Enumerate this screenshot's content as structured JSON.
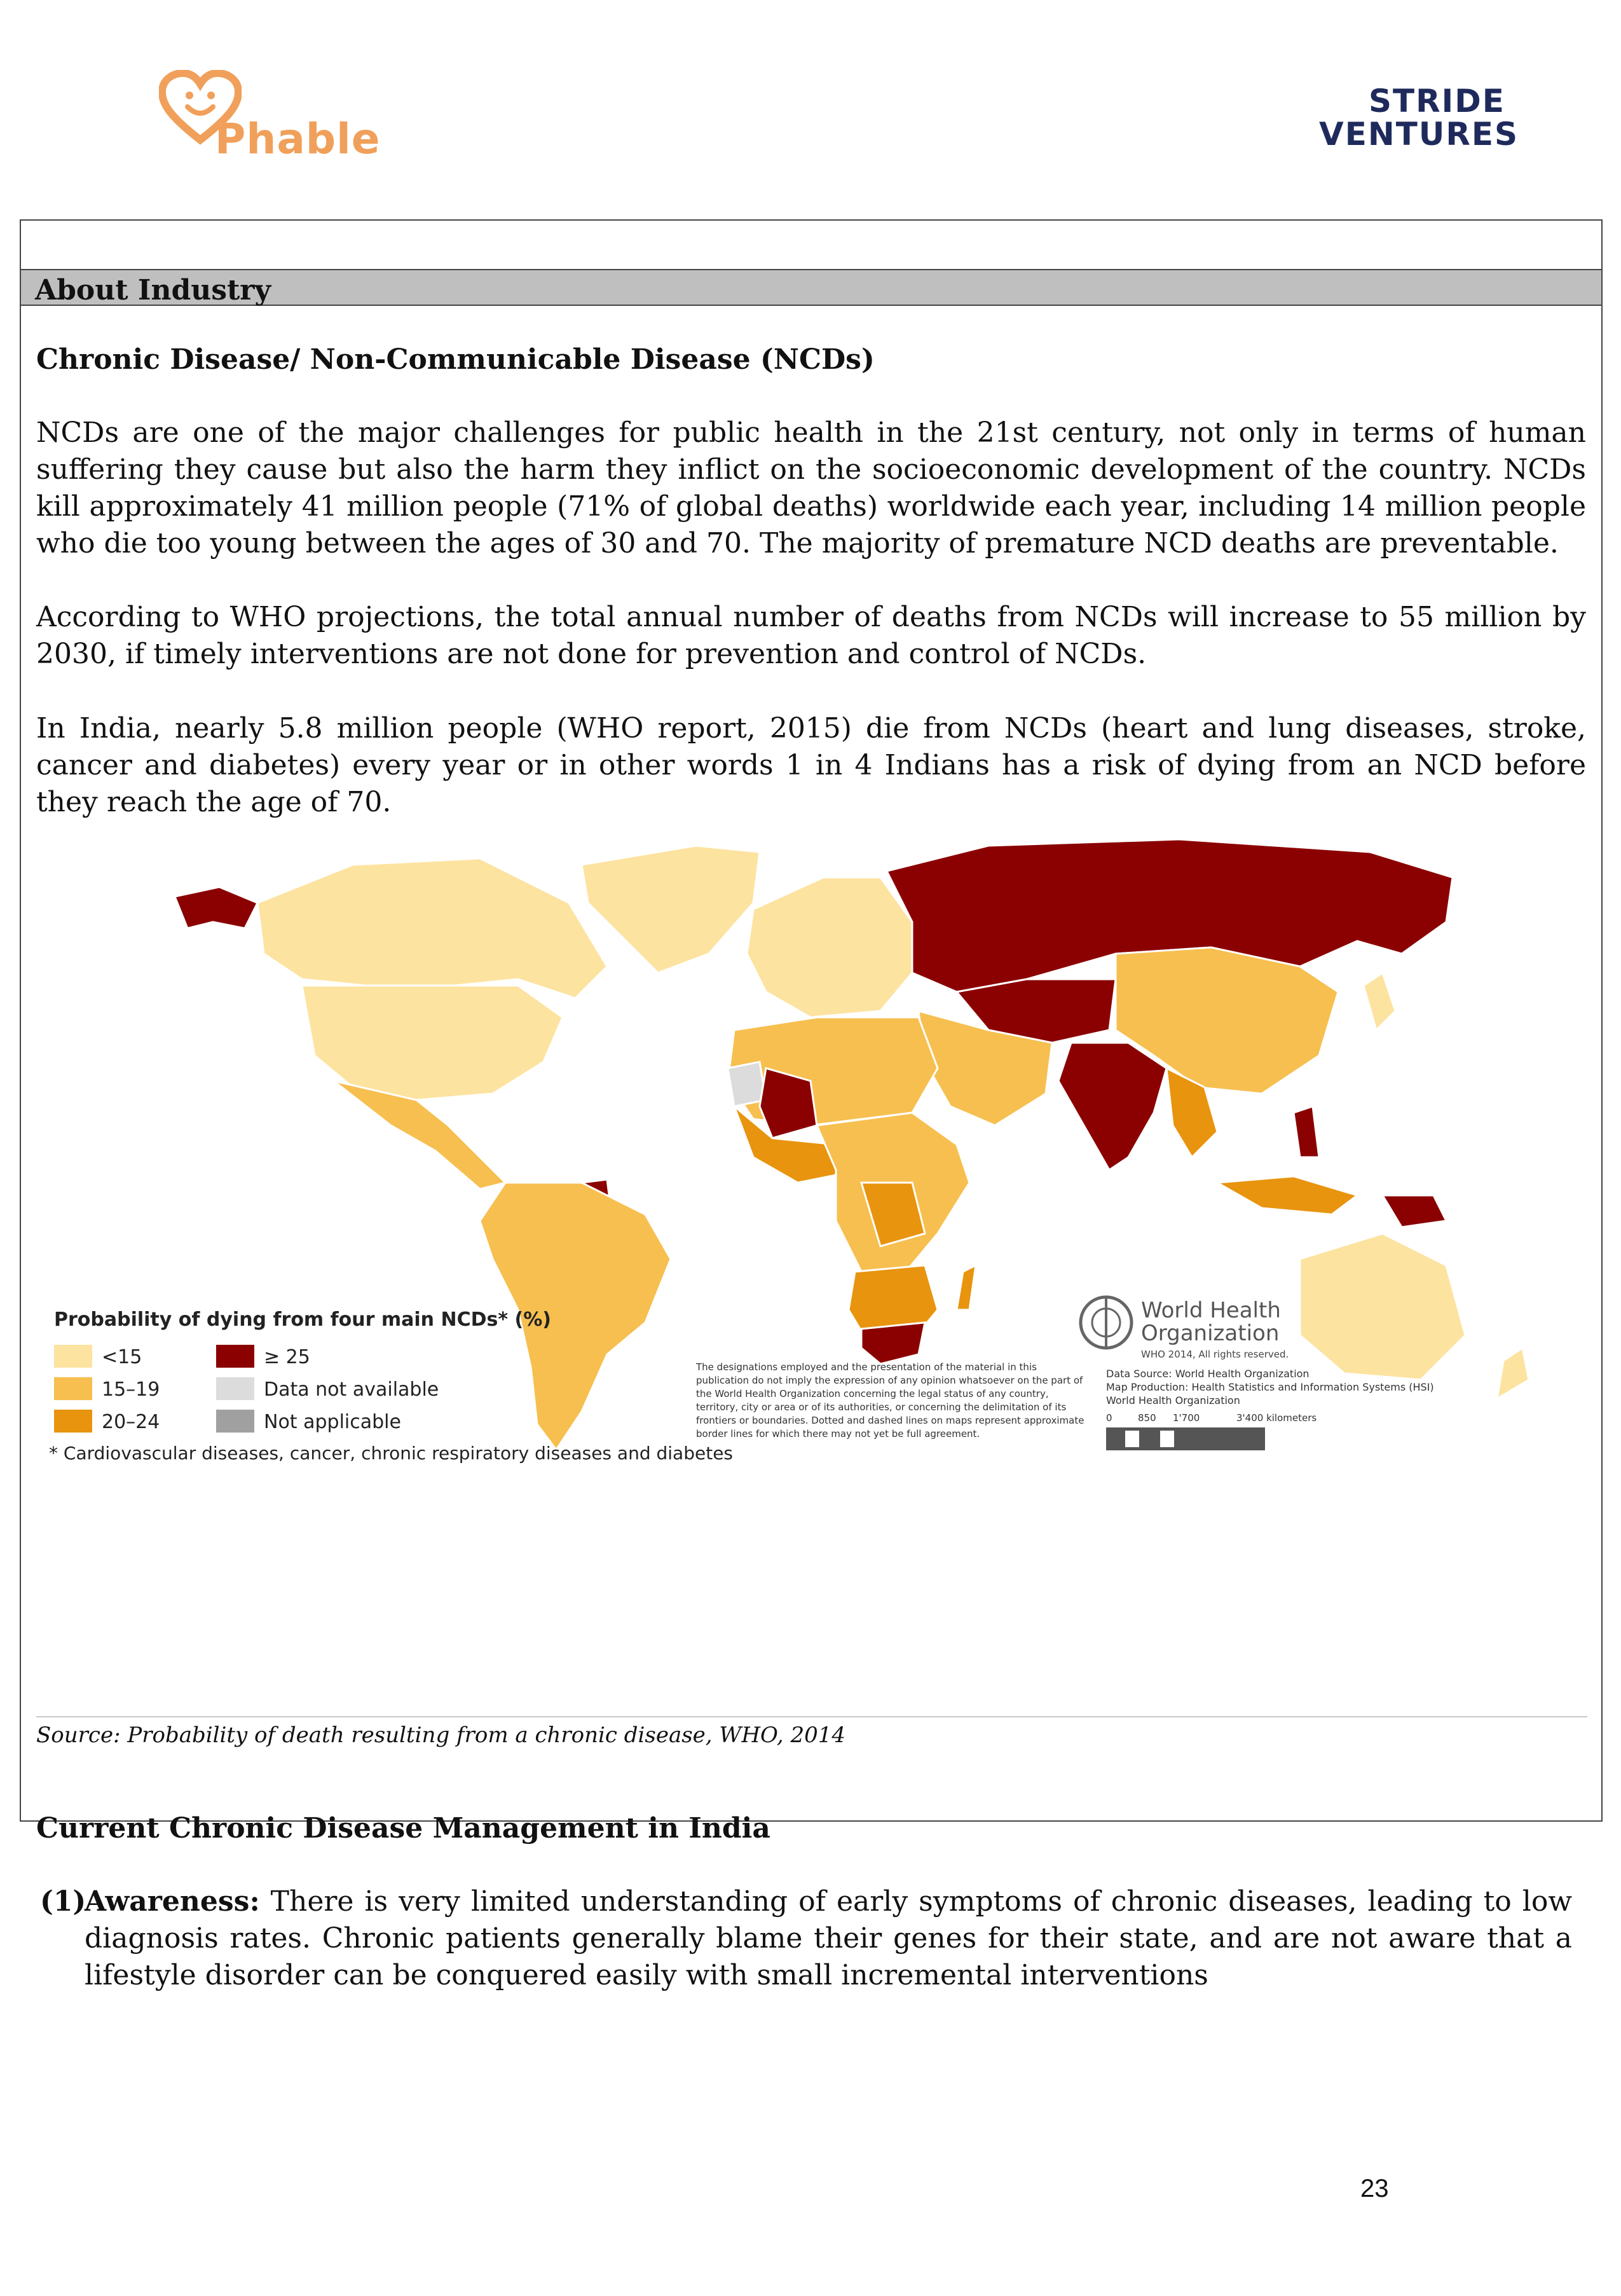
{
  "header": {
    "left_logo_text": "Phable",
    "right_logo_top": "STRIDE",
    "right_logo_bottom": "VENTURES"
  },
  "section": {
    "title": "About Industry",
    "subheading": "Chronic Disease/ Non-Communicable Disease (NCDs)",
    "paragraphs": [
      "NCDs are one of the major challenges for public health in the 21st century, not only in terms of human suffering they cause but also the harm they inflict on the socioeconomic development of the country. NCDs kill approximately 41 million people (71% of global deaths) worldwide each year, including 14 million people who die too young between the ages of 30 and 70. The majority of premature NCD deaths are preventable.",
      "According to WHO projections, the total annual number of deaths from NCDs will increase to 55 million by 2030, if timely interventions are not done for prevention and control of NCDs.",
      "In India, nearly 5.8 million people (WHO report, 2015) die from NCDs (heart and lung diseases, stroke, cancer and diabetes) every year or in other words 1 in 4 Indians has a risk of dying from an NCD before they reach the age of 70."
    ]
  },
  "map": {
    "legend_title": "Probability of dying from four main NCDs* (%)",
    "legend_items": [
      {
        "label": "<15",
        "color": "#fde3a0"
      },
      {
        "label": "15–19",
        "color": "#f6bf4f"
      },
      {
        "label": "20–24",
        "color": "#e8940e"
      },
      {
        "label": "≥ 25",
        "color": "#8b0000"
      },
      {
        "label": "Data not available",
        "color": "#dcdcdc"
      },
      {
        "label": "Not applicable",
        "color": "#a0a0a0"
      }
    ],
    "footnote": "* Cardiovascular diseases, cancer, chronic respiratory diseases and diabetes",
    "disclaimer": "The designations employed and the presentation of the material in this publication do not imply the expression of any opinion whatsoever on the part of the World Health Organization concerning the legal status of any country, territory, city or area or of its authorities, or concerning the delimitation of its frontiers or boundaries. Dotted and dashed lines on maps represent approximate border lines for which there may not yet be full agreement.",
    "who_name_1": "World Health",
    "who_name_2": "Organization",
    "who_copyright": "WHO 2014, All rights reserved.",
    "data_source": "Data Source: World Health Organization",
    "map_production": "Map Production: Health Statistics and Information Systems (HSI)",
    "map_production_org": "World Health Organization",
    "scale_labels": [
      "0",
      "850",
      "1'700",
      "3'400 kilometers"
    ]
  },
  "source": "Source: Probability of death resulting from a chronic disease, WHO, 2014",
  "management": {
    "heading": "Current Chronic Disease Management in India",
    "items": [
      {
        "num": "(1)",
        "label": "Awareness:",
        "text": " There is very limited understanding of early symptoms of chronic diseases, leading to low diagnosis rates. Chronic patients generally blame their genes for their state, and are not aware that a lifestyle disorder can be conquered easily with small incremental interventions"
      }
    ]
  },
  "page_number": "23"
}
